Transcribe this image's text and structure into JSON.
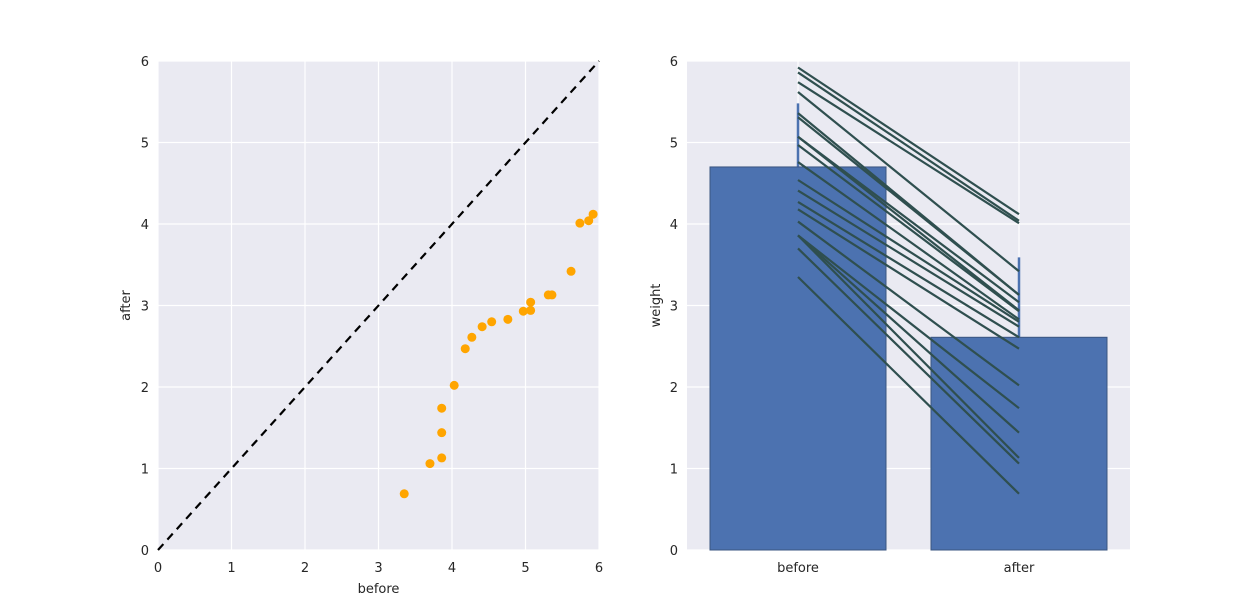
{
  "chart_data": [
    {
      "type": "scatter",
      "xlabel": "before",
      "ylabel": "after",
      "xlim": [
        0,
        6
      ],
      "ylim": [
        0,
        6
      ],
      "xticks": [
        "0",
        "1",
        "2",
        "3",
        "4",
        "5",
        "6"
      ],
      "yticks": [
        "0",
        "1",
        "2",
        "3",
        "4",
        "5",
        "6"
      ],
      "grid": true,
      "point_color": "#FFA500",
      "reference_line": {
        "style": "dashed",
        "color": "#000000",
        "from": [
          0,
          0
        ],
        "to": [
          6,
          6
        ]
      },
      "points": [
        [
          3.35,
          0.69
        ],
        [
          3.7,
          1.06
        ],
        [
          3.86,
          1.13
        ],
        [
          3.86,
          1.44
        ],
        [
          3.86,
          1.74
        ],
        [
          4.03,
          2.02
        ],
        [
          4.18,
          2.47
        ],
        [
          4.27,
          2.61
        ],
        [
          4.41,
          2.74
        ],
        [
          4.54,
          2.8
        ],
        [
          4.76,
          2.83
        ],
        [
          4.97,
          2.93
        ],
        [
          5.07,
          2.94
        ],
        [
          5.07,
          3.04
        ],
        [
          5.31,
          3.13
        ],
        [
          5.36,
          3.13
        ],
        [
          5.62,
          3.42
        ],
        [
          5.74,
          4.01
        ],
        [
          5.86,
          4.04
        ],
        [
          5.92,
          4.12
        ]
      ]
    },
    {
      "type": "bar",
      "categories": [
        "before",
        "after"
      ],
      "values": [
        4.7,
        2.61
      ],
      "ci": [
        [
          3.92,
          5.48
        ],
        [
          1.63,
          3.59
        ]
      ],
      "ylabel": "weight",
      "xlabel": "",
      "ylim": [
        0,
        6
      ],
      "yticks": [
        "0",
        "1",
        "2",
        "3",
        "4",
        "5",
        "6"
      ],
      "grid": true,
      "bar_color": "#4C72B0",
      "line_color": "#2F4F4F"
    }
  ]
}
